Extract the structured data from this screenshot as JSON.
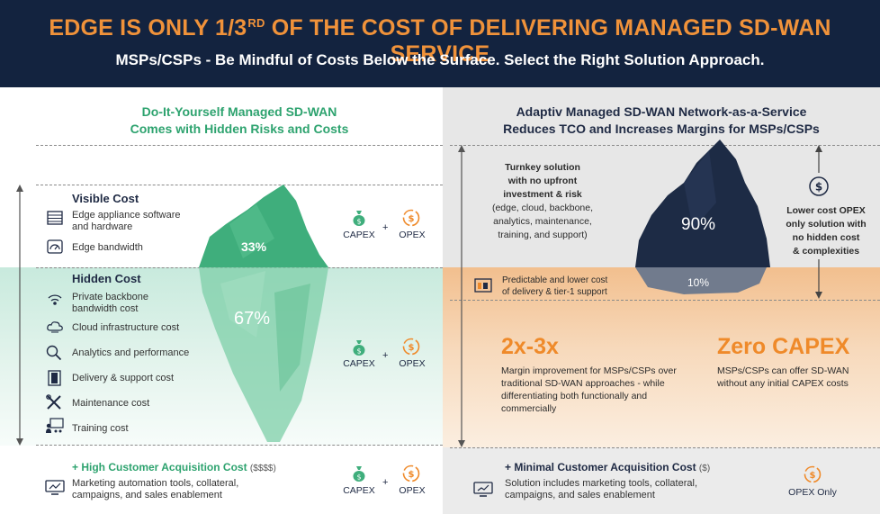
{
  "header": {
    "title_pre": "EDGE IS ONLY 1/3",
    "title_sup": "RD",
    "title_post": " OF THE COST OF DELIVERING MANAGED SD-WAN SERVICE",
    "subtitle": "MSPs/CSPs - Be Mindful of Costs Below the Surface. Select the Right Solution Approach."
  },
  "left": {
    "title_line1": "Do-It-Yourself Managed SD-WAN",
    "title_line2": "Comes with Hidden Risks and Costs",
    "visible_cost": {
      "heading": "Visible Cost",
      "items": [
        {
          "label": "Edge appliance software and hardware",
          "icon": "appliance-icon"
        },
        {
          "label": "Edge bandwidth",
          "icon": "gauge-icon"
        }
      ],
      "percent": "33%"
    },
    "hidden_cost": {
      "heading": "Hidden Cost",
      "items": [
        {
          "label": "Private backbone bandwidth cost",
          "icon": "wifi-icon"
        },
        {
          "label": "Cloud infrastructure cost",
          "icon": "cloud-icon"
        },
        {
          "label": "Analytics and performance",
          "icon": "magnifier-icon"
        },
        {
          "label": "Delivery & support cost",
          "icon": "door-icon"
        },
        {
          "label": "Maintenance cost",
          "icon": "tools-icon"
        },
        {
          "label": "Training cost",
          "icon": "training-icon"
        }
      ],
      "percent": "67%"
    },
    "acquisition": {
      "heading": "+ High Customer Acquisition Cost",
      "note": "($$$$)",
      "description": "Marketing automation tools, collateral, campaigns, and sales enablement",
      "icon": "monitor-icon"
    },
    "capex_label": "CAPEX",
    "opex_label": "OPEX",
    "plus": "+"
  },
  "right": {
    "title_line1": "Adaptiv Managed SD-WAN Network-as-a-Service",
    "title_line2": "Reduces TCO and Increases Margins for MSPs/CSPs",
    "turnkey_bold_lines": [
      "Turnkey solution",
      "with no upfront",
      "investment & risk"
    ],
    "turnkey_lines": [
      "(edge, cloud, backbone,",
      "analytics, maintenance,",
      "training, and support)"
    ],
    "percent_top": "90%",
    "percent_bottom": "10%",
    "lower_opex_lines": [
      "Lower cost OPEX",
      "only solution with",
      "no hidden cost",
      "& complexities"
    ],
    "predictable_lines": [
      "Predictable and lower cost",
      "of delivery & tier-1 support"
    ],
    "margin": {
      "big": "2x-3x",
      "lines": [
        "Margin improvement for MSPs/CSPs over",
        "traditional SD-WAN approaches - while",
        "differentiating both functionally and",
        "commercially"
      ]
    },
    "zero_capex": {
      "big": "Zero CAPEX",
      "lines": [
        "MSPs/CSPs can offer SD-WAN",
        "without any initial CAPEX costs"
      ]
    },
    "acquisition": {
      "heading": "+ Minimal Customer Acquisition Cost",
      "note": "($)",
      "description": "Solution includes marketing tools, collateral, campaigns, and sales enablement",
      "icon": "chart-monitor-icon"
    },
    "opex_only_label": "OPEX Only"
  },
  "colors": {
    "navy": "#13233f",
    "orange": "#f0923a",
    "green": "#2ea36f",
    "iceberg_green": "#3fae7c",
    "iceberg_navy": "#1d2b45"
  }
}
